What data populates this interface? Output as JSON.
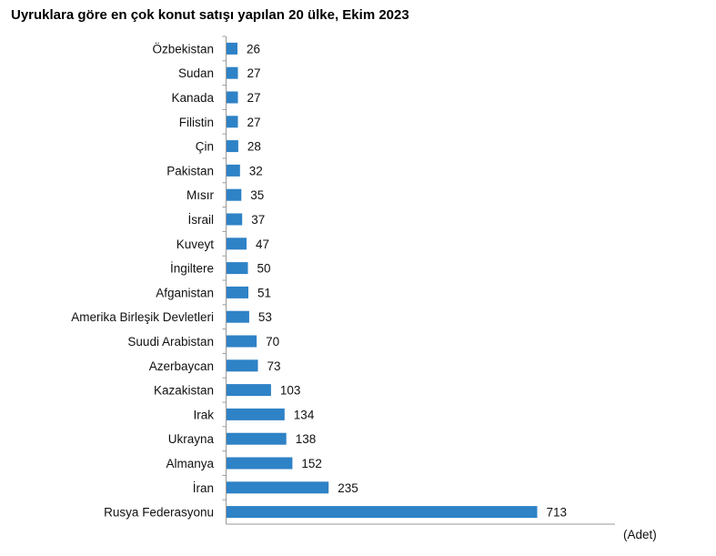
{
  "chart_data": {
    "type": "bar",
    "orientation": "horizontal",
    "title": "Uyruklara göre en çok konut satışı yapılan 20 ülke, Ekim 2023",
    "unit_label": "(Adet)",
    "bar_color": "#2E82C6",
    "categories": [
      "Özbekistan",
      "Sudan",
      "Kanada",
      "Filistin",
      "Çin",
      "Pakistan",
      "Mısır",
      "İsrail",
      "Kuveyt",
      "İngiltere",
      "Afganistan",
      "Amerika Birleşik Devletleri",
      "Suudi Arabistan",
      "Azerbaycan",
      "Kazakistan",
      "Irak",
      "Ukrayna",
      "Almanya",
      "İran",
      "Rusya Federasyonu"
    ],
    "values": [
      26,
      27,
      27,
      27,
      28,
      32,
      35,
      37,
      47,
      50,
      51,
      53,
      70,
      73,
      103,
      134,
      138,
      152,
      235,
      713
    ],
    "value_labels": [
      "26",
      "27",
      "27",
      "27",
      "28",
      "32",
      "35",
      "37",
      "47",
      "50",
      "51",
      "53",
      "70",
      "73",
      "103",
      "134",
      "138",
      "152",
      "235",
      "713"
    ],
    "xlim": [
      0,
      913
    ],
    "grid": false
  }
}
